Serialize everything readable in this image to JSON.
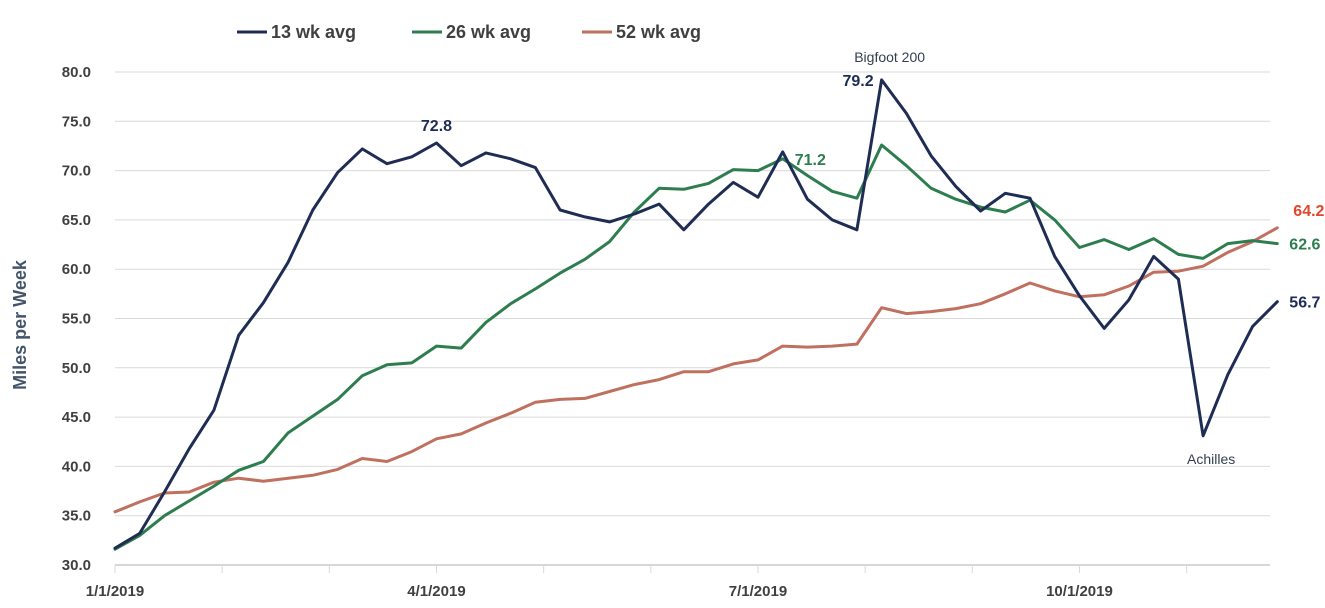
{
  "chart_data": {
    "type": "line",
    "title": "",
    "xlabel": "",
    "ylabel": "Miles per Week",
    "ylim": [
      30,
      80
    ],
    "ytick_step": 5,
    "ytick_labels": [
      "30.0",
      "35.0",
      "40.0",
      "45.0",
      "50.0",
      "55.0",
      "60.0",
      "65.0",
      "70.0",
      "75.0",
      "80.0"
    ],
    "x_count": 53,
    "xtick_labels": [
      {
        "index": 0,
        "label": "1/1/2019"
      },
      {
        "index": 13,
        "label": "4/1/2019"
      },
      {
        "index": 26,
        "label": "7/1/2019"
      },
      {
        "index": 39,
        "label": "10/1/2019"
      }
    ],
    "legend_position": "top-left",
    "series": [
      {
        "name": "13 wk avg",
        "color": "#1f2d55",
        "values": [
          31.7,
          33.2,
          37.4,
          41.8,
          45.7,
          53.3,
          56.6,
          60.7,
          66.0,
          69.8,
          72.2,
          70.7,
          71.4,
          72.8,
          70.5,
          71.8,
          71.2,
          70.3,
          66.0,
          65.3,
          64.8,
          65.6,
          66.6,
          64.0,
          66.6,
          68.8,
          67.3,
          71.9,
          67.1,
          65.0,
          64.0,
          79.2,
          75.8,
          71.5,
          68.4,
          65.9,
          67.7,
          67.2,
          61.3,
          57.3,
          54.0,
          56.9,
          61.3,
          59.0,
          43.1,
          49.3,
          54.2,
          56.7
        ]
      },
      {
        "name": "26 wk avg",
        "color": "#2e7d4f",
        "values": [
          31.6,
          33.0,
          35.0,
          36.5,
          38.0,
          39.6,
          40.5,
          43.4,
          45.1,
          46.8,
          49.2,
          50.3,
          50.5,
          52.2,
          52.0,
          54.6,
          56.5,
          58.0,
          59.6,
          61.0,
          62.8,
          65.8,
          68.2,
          68.1,
          68.7,
          70.1,
          70.0,
          71.2,
          69.5,
          67.9,
          67.2,
          72.6,
          70.5,
          68.2,
          67.1,
          66.3,
          65.8,
          67.0,
          65.0,
          62.2,
          63.0,
          62.0,
          63.1,
          61.5,
          61.1,
          62.6,
          62.9,
          62.6
        ]
      },
      {
        "name": "52 wk avg",
        "color": "#c0705f",
        "values": [
          35.4,
          36.4,
          37.3,
          37.4,
          38.4,
          38.8,
          38.5,
          38.8,
          39.1,
          39.7,
          40.8,
          40.5,
          41.5,
          42.8,
          43.3,
          44.4,
          45.4,
          46.5,
          46.8,
          46.9,
          47.6,
          48.3,
          48.8,
          49.6,
          49.6,
          50.4,
          50.8,
          52.2,
          52.1,
          52.2,
          52.4,
          56.1,
          55.5,
          55.7,
          56.0,
          56.5,
          57.5,
          58.6,
          57.8,
          57.2,
          57.4,
          58.3,
          59.7,
          59.8,
          60.3,
          61.7,
          62.8,
          64.2
        ]
      }
    ],
    "data_labels": [
      {
        "series": 0,
        "index": 13,
        "text": "72.8",
        "color": "#1f2d55",
        "pos": "above"
      },
      {
        "series": 0,
        "index": 31,
        "text": "79.2",
        "color": "#1f2d55",
        "pos": "left"
      },
      {
        "series": 1,
        "index": 27,
        "text": "71.2",
        "color": "#2e7d4f",
        "pos": "right"
      },
      {
        "series": 2,
        "index": 47,
        "text": "64.2",
        "color": "#e2462b",
        "pos": "above-right"
      },
      {
        "series": 1,
        "index": 47,
        "text": "62.6",
        "color": "#2e7d4f",
        "pos": "right"
      },
      {
        "series": 0,
        "index": 47,
        "text": "56.7",
        "color": "#1f2d55",
        "pos": "right"
      }
    ],
    "annotations": [
      {
        "series": 0,
        "index": 31,
        "text": "Bigfoot 200",
        "pos": "above"
      },
      {
        "series": 0,
        "index": 44,
        "text": "Achilles",
        "pos": "below"
      }
    ]
  }
}
